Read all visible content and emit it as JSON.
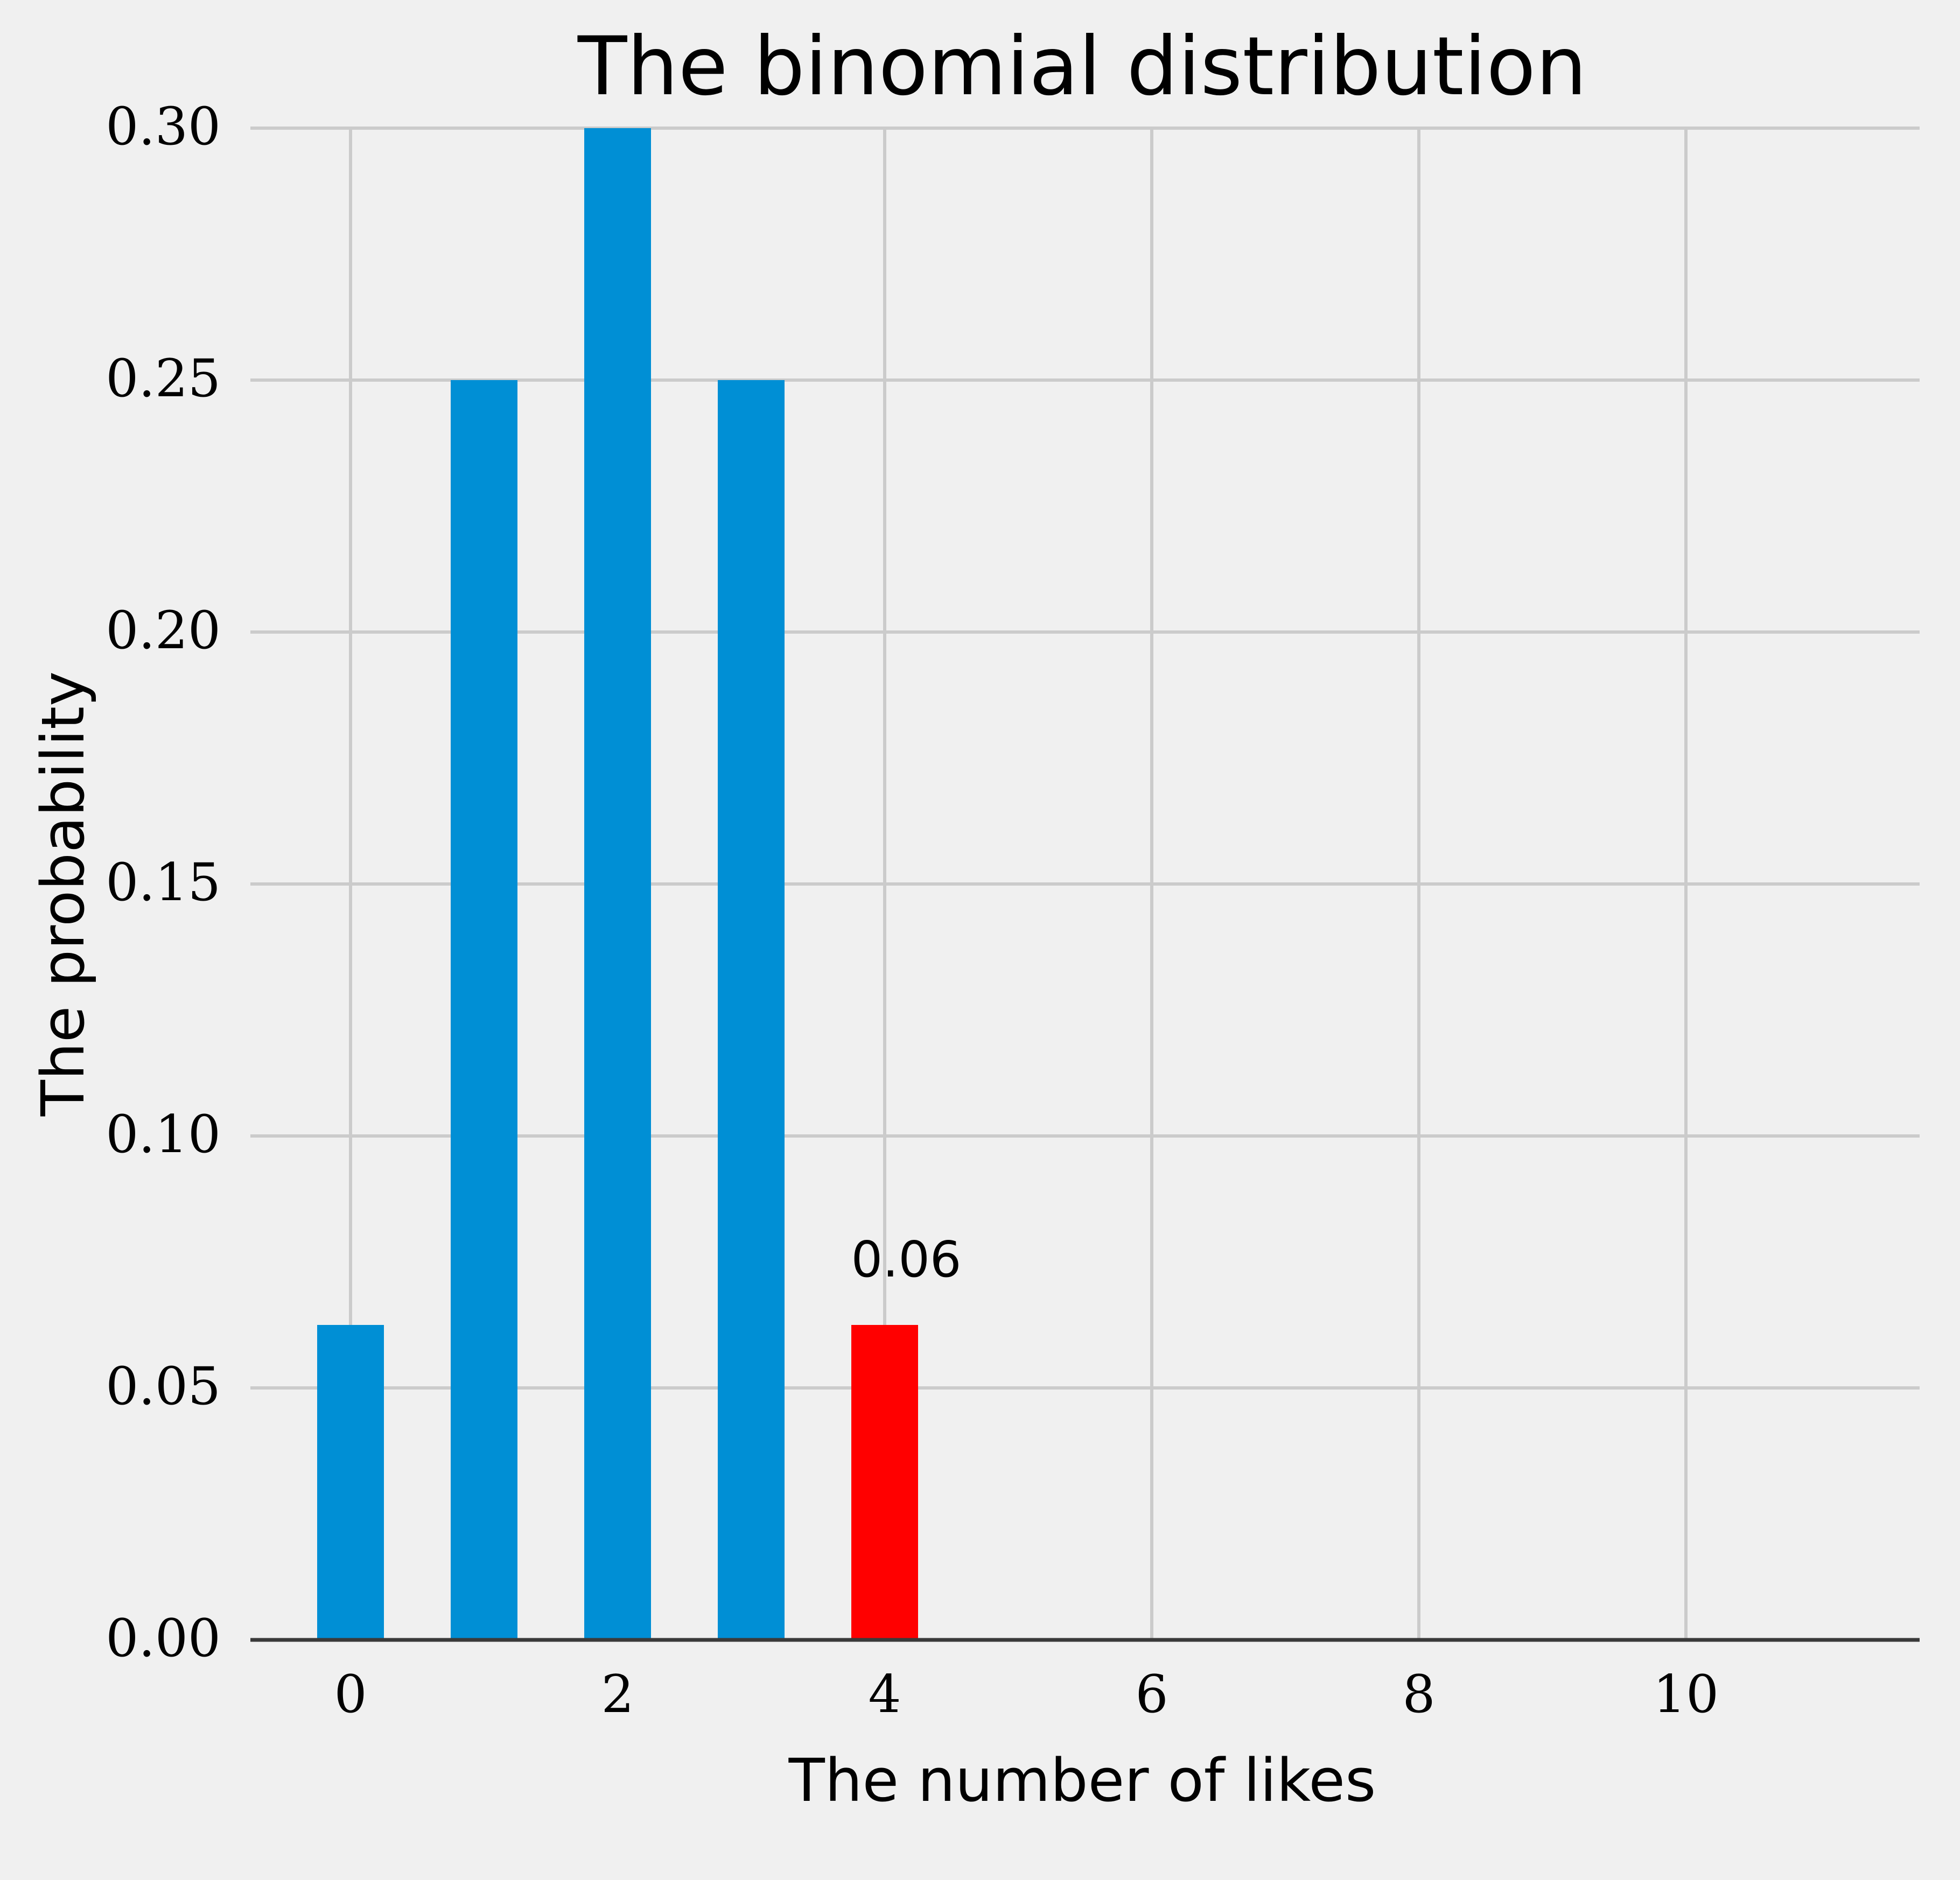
{
  "chart_data": {
    "type": "bar",
    "title": "The binomial distribution",
    "xlabel": "The number of likes",
    "ylabel": "The probability",
    "x": [
      0,
      1,
      2,
      3,
      4
    ],
    "values": [
      0.0625,
      0.25,
      0.3,
      0.25,
      0.0625
    ],
    "xlim": [
      -0.75,
      11.75
    ],
    "ylim": [
      0,
      0.3
    ],
    "x_ticks": [
      0,
      2,
      4,
      6,
      8,
      10
    ],
    "x_tick_labels": [
      "0",
      "2",
      "4",
      "6",
      "8",
      "10"
    ],
    "y_ticks": [
      0,
      0.05,
      0.1,
      0.15,
      0.2,
      0.25,
      0.3
    ],
    "y_tick_labels": [
      "0.00",
      "0.05",
      "0.10",
      "0.15",
      "0.20",
      "0.25",
      "0.30"
    ],
    "grid": true,
    "bar_colors": [
      "#008fd5",
      "#008fd5",
      "#008fd5",
      "#008fd5",
      "#ff0000"
    ],
    "highlight_index": 4,
    "annotation": {
      "x": 4,
      "y": 0.0625,
      "text": "0.06"
    }
  }
}
